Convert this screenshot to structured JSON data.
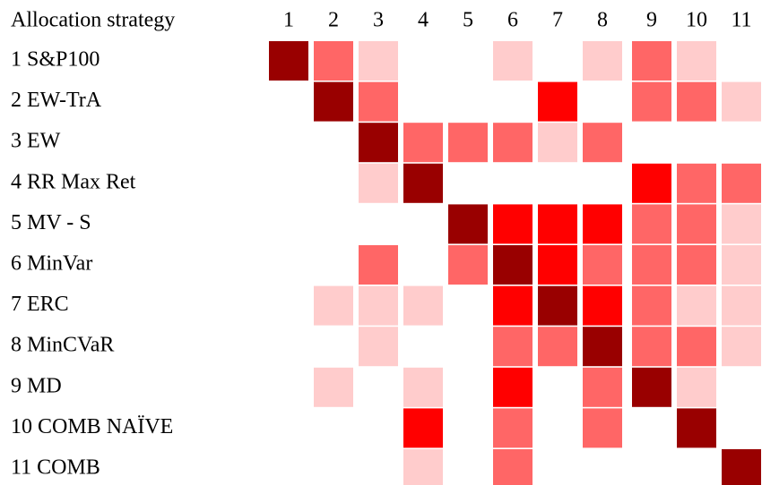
{
  "chart_data": {
    "type": "heatmap",
    "title": "Allocation strategy",
    "x": [
      "1",
      "2",
      "3",
      "4",
      "5",
      "6",
      "7",
      "8",
      "9",
      "10",
      "11"
    ],
    "categories": [
      "1 S&P100",
      "2 EW-TrA",
      "3 EW",
      "4 RR Max Ret",
      "5 MV - S",
      "6 MinVar",
      "7 ERC",
      "8 MinCVaR",
      "9 MD",
      "10 COMB NAÏVE",
      "11 COMB"
    ],
    "colors": [
      [
        "#990000",
        "#ff6666",
        "#ffcccc",
        null,
        null,
        "#ffcccc",
        null,
        "#ffcccc",
        "#ff6666",
        "#ffcccc",
        null
      ],
      [
        null,
        "#990000",
        "#ff6666",
        null,
        null,
        null,
        "#ff0000",
        null,
        "#ff6666",
        "#ff6666",
        "#ffcccc"
      ],
      [
        null,
        null,
        "#990000",
        "#ff6666",
        "#ff6666",
        "#ff6666",
        "#ffcccc",
        "#ff6666",
        null,
        null,
        null
      ],
      [
        null,
        null,
        "#ffcccc",
        "#990000",
        null,
        null,
        null,
        null,
        "#ff0000",
        "#ff6666",
        "#ff6666"
      ],
      [
        null,
        null,
        null,
        null,
        "#990000",
        "#ff0000",
        "#ff0000",
        "#ff0000",
        "#ff6666",
        "#ff6666",
        "#ffcccc"
      ],
      [
        null,
        null,
        "#ff6666",
        null,
        "#ff6666",
        "#990000",
        "#ff0000",
        "#ff6666",
        "#ff6666",
        "#ff6666",
        "#ffcccc"
      ],
      [
        null,
        "#ffcccc",
        "#ffcccc",
        "#ffcccc",
        null,
        "#ff0000",
        "#990000",
        "#ff0000",
        "#ff6666",
        "#ffcccc",
        "#ffcccc"
      ],
      [
        null,
        null,
        "#ffcccc",
        null,
        null,
        "#ff6666",
        "#ff6666",
        "#990000",
        "#ff6666",
        "#ff6666",
        "#ffcccc"
      ],
      [
        null,
        "#ffcccc",
        null,
        "#ffcccc",
        null,
        "#ff0000",
        null,
        "#ff6666",
        "#990000",
        "#ffcccc",
        null
      ],
      [
        null,
        null,
        null,
        "#ff0000",
        null,
        "#ff6666",
        null,
        "#ff6666",
        null,
        "#990000",
        null
      ],
      [
        null,
        null,
        null,
        "#ffcccc",
        null,
        "#ff6666",
        null,
        null,
        null,
        null,
        "#990000"
      ]
    ]
  }
}
